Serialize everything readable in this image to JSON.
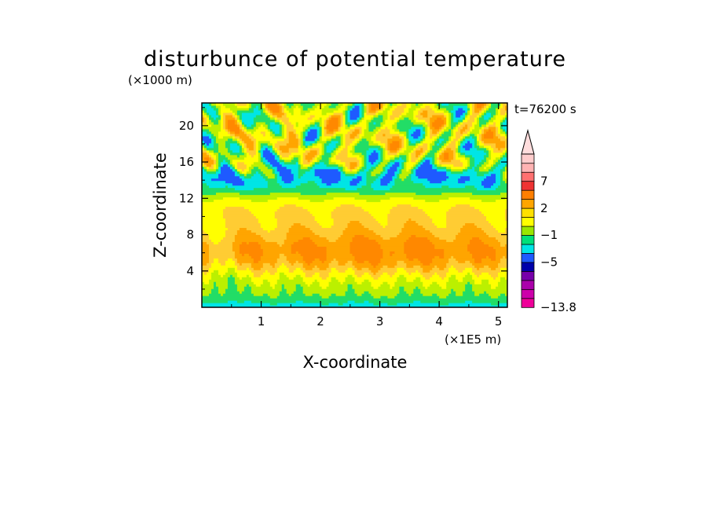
{
  "chart_data": {
    "type": "heatmap",
    "title": "disturbunce of potential temperature",
    "z_unit_label": "(×1000 m)",
    "x_unit_label": "(×1E5 m)",
    "time_label": "t=76200 s",
    "xlabel": "X-coordinate",
    "ylabel": "Z-coordinate",
    "xlim": [
      0,
      5.15
    ],
    "ylim": [
      0,
      22.5
    ],
    "xticks": [
      1,
      2,
      3,
      4,
      5
    ],
    "yticks": [
      4,
      8,
      12,
      16,
      20
    ],
    "colorbar": {
      "labels": [
        {
          "text": "7",
          "value": 7
        },
        {
          "text": "2",
          "value": 2
        },
        {
          "text": "−1",
          "value": -1
        },
        {
          "text": "−5",
          "value": -5
        },
        {
          "text": "−13.8",
          "value": -13.8
        }
      ],
      "colors_bottom_to_top": [
        "#ee0099",
        "#cc00aa",
        "#aa00aa",
        "#7700aa",
        "#0000aa",
        "#1e5aff",
        "#00e5e5",
        "#00e07a",
        "#99e600",
        "#ffff00",
        "#ffe000",
        "#ffa500",
        "#ff7f00",
        "#ee3333",
        "#ff7070",
        "#ffb3b3",
        "#ffcccc"
      ]
    },
    "field_colors": {
      "deep_blue": "#0000cc",
      "cyan": "#00e5e5",
      "green": "#22dd66",
      "yellow_green": "#bbf000",
      "yellow": "#ffff00",
      "light_orange": "#ffcc33",
      "orange": "#ffa500",
      "dark_orange": "#ff8800"
    }
  }
}
